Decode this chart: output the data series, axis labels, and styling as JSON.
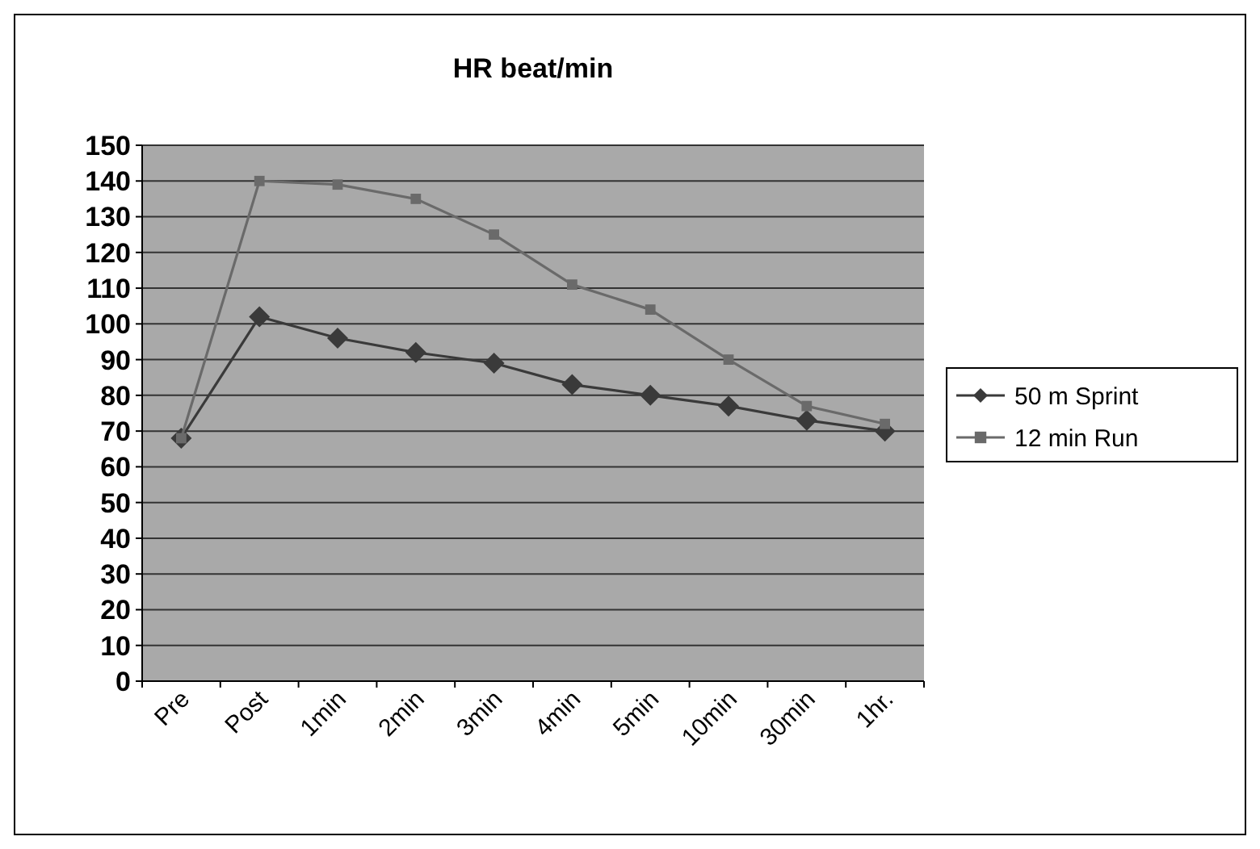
{
  "chart_data": {
    "type": "line",
    "title": "HR beat/min",
    "categories": [
      "Pre",
      "Post",
      "1min",
      "2min",
      "3min",
      "4min",
      "5min",
      "10min",
      "30min",
      "1hr."
    ],
    "series": [
      {
        "name": "50 m Sprint",
        "color": "#3a3a3a",
        "marker": "diamond",
        "values": [
          68,
          102,
          96,
          92,
          89,
          83,
          80,
          77,
          73,
          70
        ]
      },
      {
        "name": "12 min Run",
        "color": "#6a6a6a",
        "marker": "square",
        "values": [
          68,
          140,
          139,
          135,
          125,
          111,
          104,
          90,
          77,
          72
        ]
      }
    ],
    "ylim": [
      0,
      150
    ],
    "yticks": [
      0,
      10,
      20,
      30,
      40,
      50,
      60,
      70,
      80,
      90,
      100,
      110,
      120,
      130,
      140,
      150
    ],
    "grid": "y",
    "legend": "right"
  }
}
